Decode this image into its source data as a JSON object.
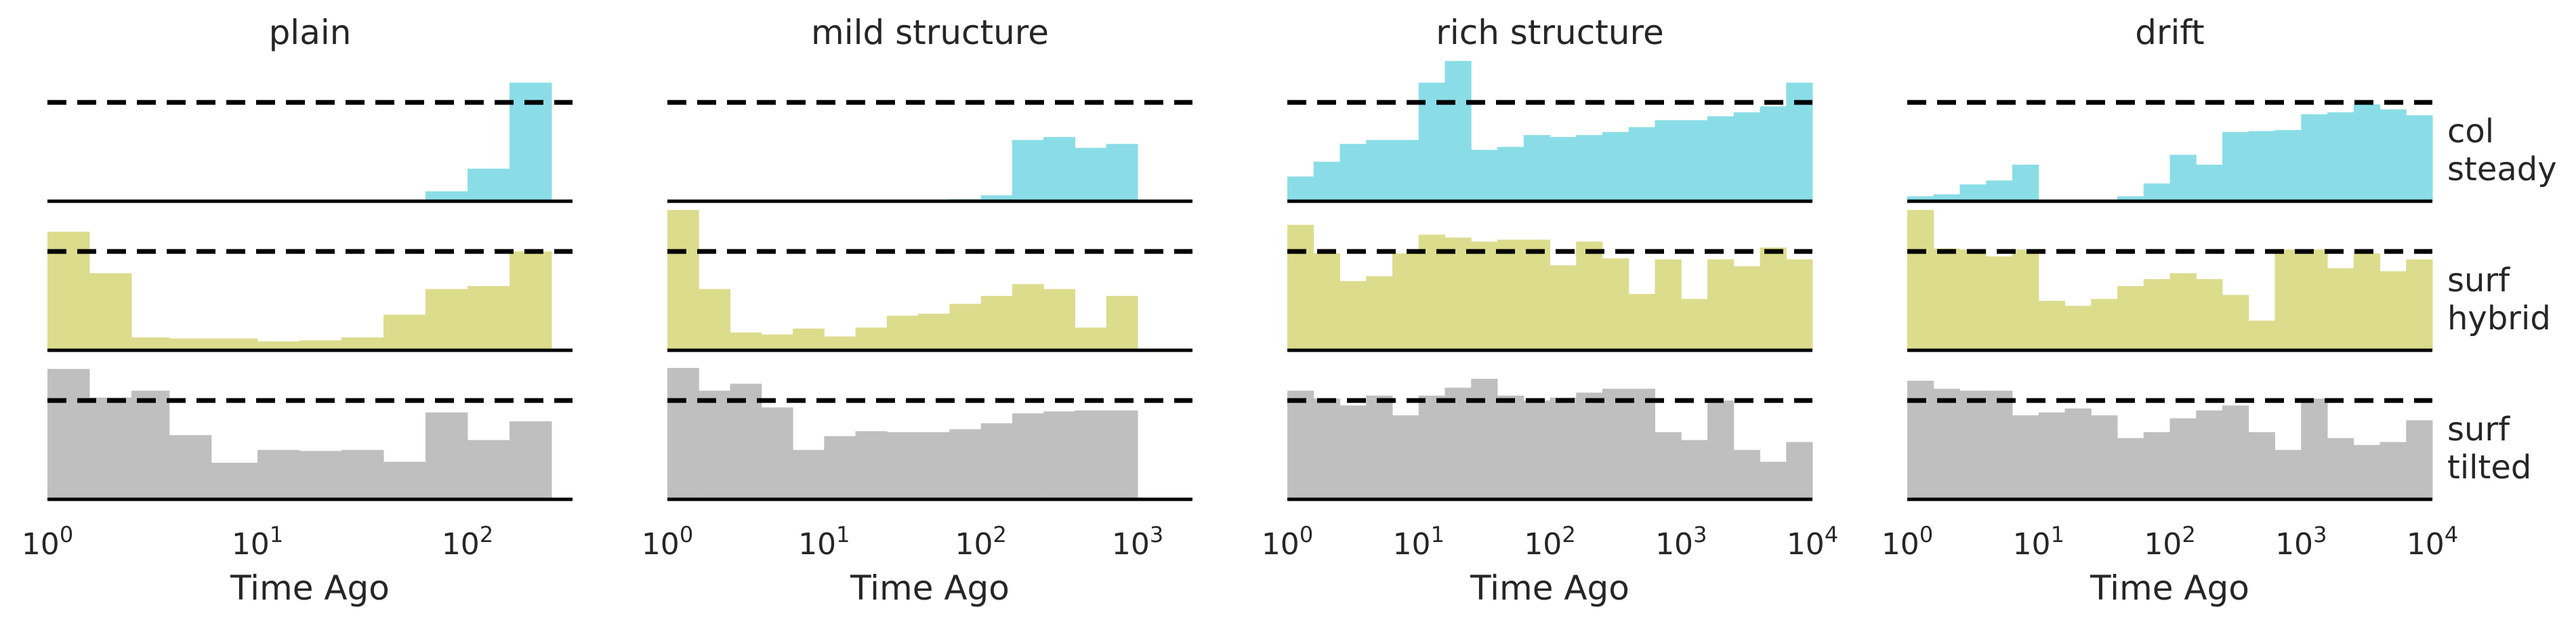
{
  "colors": {
    "col_steady": "#8adde6",
    "surf_hybrid": "#dcdc8d",
    "surf_tilted": "#bfbfbf",
    "baseline": "#000000",
    "reference": "#000000"
  },
  "chart_data": {
    "type": "bar",
    "description_scale": "log",
    "xlabel": "Time Ago",
    "ylim": [
      0,
      1.2
    ],
    "reference_level": 1.0,
    "row_labels": [
      [
        "col",
        "steady"
      ],
      [
        "surf",
        "hybrid"
      ],
      [
        "surf",
        "tilted"
      ]
    ],
    "series_keys": [
      "col_steady",
      "surf_hybrid",
      "surf_tilted"
    ],
    "panels": [
      {
        "title": "plain",
        "xlim_exp": [
          0,
          2.5
        ],
        "ticks": [
          {
            "base": "10",
            "exp": "0",
            "value": 0
          },
          {
            "base": "10",
            "exp": "1",
            "value": 1
          },
          {
            "base": "10",
            "exp": "2",
            "value": 2
          }
        ],
        "bins_log10": [
          0,
          0.2,
          0.4,
          0.58,
          0.78,
          1.0,
          1.2,
          1.4,
          1.6,
          1.8,
          2.0,
          2.2,
          2.4
        ],
        "values": {
          "col_steady": [
            0,
            0,
            0,
            0,
            0,
            0,
            0,
            0,
            0,
            0.1,
            0.33,
            1.2
          ],
          "surf_hybrid": [
            1.2,
            0.78,
            0.13,
            0.12,
            0.12,
            0.09,
            0.1,
            0.13,
            0.36,
            0.62,
            0.65,
            1.0
          ],
          "surf_tilted": [
            1.32,
            1.03,
            1.1,
            0.65,
            0.37,
            0.5,
            0.49,
            0.5,
            0.38,
            0.88,
            0.6,
            0.79
          ]
        }
      },
      {
        "title": "mild structure",
        "xlim_exp": [
          0,
          3.35
        ],
        "ticks": [
          {
            "base": "10",
            "exp": "0",
            "value": 0
          },
          {
            "base": "10",
            "exp": "1",
            "value": 1
          },
          {
            "base": "10",
            "exp": "2",
            "value": 2
          },
          {
            "base": "10",
            "exp": "3",
            "value": 3
          }
        ],
        "bins_log10": [
          0,
          0.2,
          0.4,
          0.6,
          0.8,
          1.0,
          1.2,
          1.4,
          1.6,
          1.8,
          2.0,
          2.2,
          2.4,
          2.6,
          2.8,
          3.0
        ],
        "values": {
          "col_steady": [
            0,
            0,
            0,
            0,
            0,
            0,
            0,
            0,
            0,
            0.02,
            0.06,
            0.62,
            0.65,
            0.54,
            0.58,
            0
          ],
          "surf_hybrid": [
            1.47,
            0.62,
            0.18,
            0.16,
            0.22,
            0.14,
            0.23,
            0.35,
            0.37,
            0.47,
            0.55,
            0.67,
            0.62,
            0.23,
            0.55,
            0
          ],
          "surf_tilted": [
            1.33,
            1.1,
            1.17,
            0.93,
            0.5,
            0.64,
            0.69,
            0.68,
            0.68,
            0.71,
            0.77,
            0.87,
            0.89,
            0.9,
            0.9,
            0
          ]
        }
      },
      {
        "title": "rich structure",
        "xlim_exp": [
          0,
          4
        ],
        "ticks": [
          {
            "base": "10",
            "exp": "0",
            "value": 0
          },
          {
            "base": "10",
            "exp": "1",
            "value": 1
          },
          {
            "base": "10",
            "exp": "2",
            "value": 2
          },
          {
            "base": "10",
            "exp": "3",
            "value": 3
          },
          {
            "base": "10",
            "exp": "4",
            "value": 4
          }
        ],
        "bins_log10": [
          0,
          0.2,
          0.4,
          0.6,
          0.8,
          1.0,
          1.2,
          1.4,
          1.6,
          1.8,
          2.0,
          2.2,
          2.4,
          2.6,
          2.8,
          3.0,
          3.2,
          3.4,
          3.6,
          3.8,
          4.0
        ],
        "values": {
          "col_steady": [
            0.25,
            0.4,
            0.58,
            0.62,
            0.62,
            1.2,
            1.68,
            0.52,
            0.55,
            0.67,
            0.65,
            0.67,
            0.7,
            0.75,
            0.82,
            0.82,
            0.86,
            0.9,
            0.96,
            1.2
          ],
          "surf_hybrid": [
            1.27,
            0.98,
            0.7,
            0.75,
            0.98,
            1.17,
            1.14,
            1.1,
            1.12,
            1.12,
            0.86,
            1.1,
            0.93,
            0.57,
            0.92,
            0.52,
            0.92,
            0.85,
            1.04,
            0.92
          ],
          "surf_tilted": [
            1.1,
            1.02,
            0.95,
            1.05,
            0.85,
            1.05,
            1.13,
            1.22,
            1.05,
            1.0,
            1.03,
            1.08,
            1.12,
            1.12,
            0.68,
            0.6,
            1.0,
            0.5,
            0.38,
            0.58
          ]
        }
      },
      {
        "title": "drift",
        "xlim_exp": [
          0,
          4
        ],
        "ticks": [
          {
            "base": "10",
            "exp": "0",
            "value": 0
          },
          {
            "base": "10",
            "exp": "1",
            "value": 1
          },
          {
            "base": "10",
            "exp": "2",
            "value": 2
          },
          {
            "base": "10",
            "exp": "3",
            "value": 3
          },
          {
            "base": "10",
            "exp": "4",
            "value": 4
          }
        ],
        "bins_log10": [
          0,
          0.2,
          0.4,
          0.6,
          0.8,
          1.0,
          1.2,
          1.4,
          1.6,
          1.8,
          2.0,
          2.2,
          2.4,
          2.6,
          2.8,
          3.0,
          3.2,
          3.4,
          3.6,
          3.8,
          4.0
        ],
        "values": {
          "col_steady": [
            0.05,
            0.07,
            0.17,
            0.21,
            0.37,
            0.0,
            0.0,
            0.0,
            0.05,
            0.18,
            0.47,
            0.37,
            0.7,
            0.71,
            0.72,
            0.88,
            0.9,
            0.98,
            0.93,
            0.87
          ],
          "surf_hybrid": [
            1.57,
            1.03,
            1.02,
            0.95,
            1.02,
            0.5,
            0.45,
            0.52,
            0.65,
            0.72,
            0.78,
            0.72,
            0.56,
            0.3,
            1.02,
            1.02,
            0.83,
            0.98,
            0.8,
            0.92
          ],
          "surf_tilted": [
            1.2,
            1.12,
            1.1,
            1.1,
            0.85,
            0.88,
            0.92,
            0.85,
            0.62,
            0.68,
            0.82,
            0.9,
            0.95,
            0.68,
            0.5,
            1.02,
            0.62,
            0.55,
            0.58,
            0.8
          ]
        }
      }
    ]
  }
}
